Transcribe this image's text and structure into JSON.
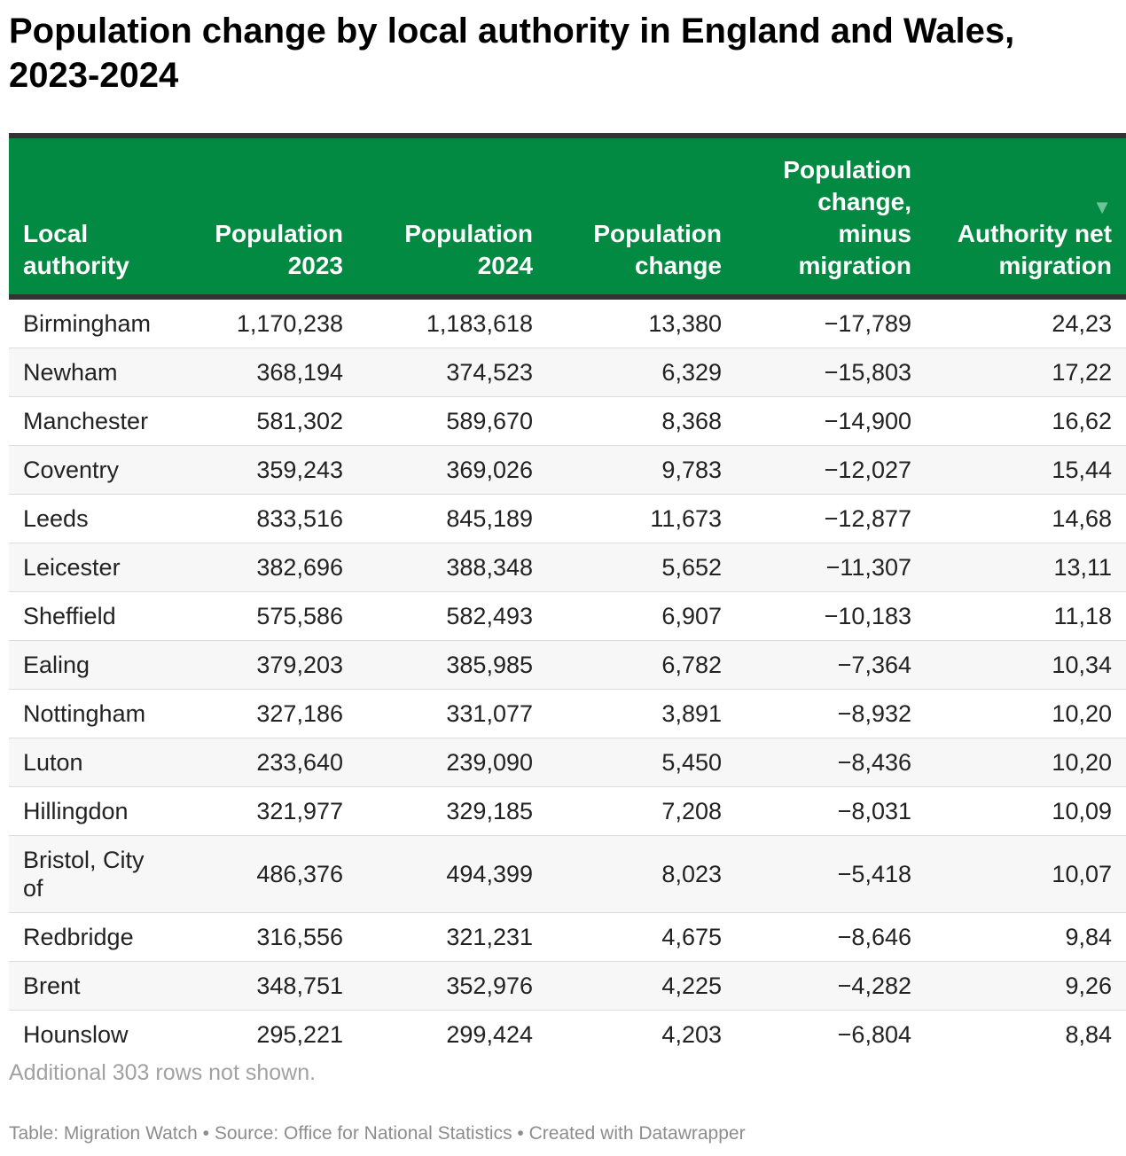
{
  "title": "Population change by local authority in England and Wales, 2023-2024",
  "colors": {
    "header_bg": "#028a42",
    "header_border": "#333333",
    "header_text": "#ffffff"
  },
  "headers": {
    "authority": "Local authority",
    "pop2023": "Population 2023",
    "pop2024": "Population 2024",
    "change": "Population change",
    "minus_migration": "Population change, minus migration",
    "net_migration": "Authority net migration",
    "sort_icon": "sort-desc-icon",
    "sort_glyph": "▼"
  },
  "rows": [
    {
      "authority": "Birmingham",
      "pop2023": "1,170,238",
      "pop2024": "1,183,618",
      "change": "13,380",
      "minus_migration": "−17,789",
      "net_migration": "24,23"
    },
    {
      "authority": "Newham",
      "pop2023": "368,194",
      "pop2024": "374,523",
      "change": "6,329",
      "minus_migration": "−15,803",
      "net_migration": "17,22"
    },
    {
      "authority": "Manchester",
      "pop2023": "581,302",
      "pop2024": "589,670",
      "change": "8,368",
      "minus_migration": "−14,900",
      "net_migration": "16,62"
    },
    {
      "authority": "Coventry",
      "pop2023": "359,243",
      "pop2024": "369,026",
      "change": "9,783",
      "minus_migration": "−12,027",
      "net_migration": "15,44"
    },
    {
      "authority": "Leeds",
      "pop2023": "833,516",
      "pop2024": "845,189",
      "change": "11,673",
      "minus_migration": "−12,877",
      "net_migration": "14,68"
    },
    {
      "authority": "Leicester",
      "pop2023": "382,696",
      "pop2024": "388,348",
      "change": "5,652",
      "minus_migration": "−11,307",
      "net_migration": "13,11"
    },
    {
      "authority": "Sheffield",
      "pop2023": "575,586",
      "pop2024": "582,493",
      "change": "6,907",
      "minus_migration": "−10,183",
      "net_migration": "11,18"
    },
    {
      "authority": "Ealing",
      "pop2023": "379,203",
      "pop2024": "385,985",
      "change": "6,782",
      "minus_migration": "−7,364",
      "net_migration": "10,34"
    },
    {
      "authority": "Nottingham",
      "pop2023": "327,186",
      "pop2024": "331,077",
      "change": "3,891",
      "minus_migration": "−8,932",
      "net_migration": "10,20"
    },
    {
      "authority": "Luton",
      "pop2023": "233,640",
      "pop2024": "239,090",
      "change": "5,450",
      "minus_migration": "−8,436",
      "net_migration": "10,20"
    },
    {
      "authority": "Hillingdon",
      "pop2023": "321,977",
      "pop2024": "329,185",
      "change": "7,208",
      "minus_migration": "−8,031",
      "net_migration": "10,09"
    },
    {
      "authority": "Bristol, City of",
      "pop2023": "486,376",
      "pop2024": "494,399",
      "change": "8,023",
      "minus_migration": "−5,418",
      "net_migration": "10,07"
    },
    {
      "authority": "Redbridge",
      "pop2023": "316,556",
      "pop2024": "321,231",
      "change": "4,675",
      "minus_migration": "−8,646",
      "net_migration": "9,84"
    },
    {
      "authority": "Brent",
      "pop2023": "348,751",
      "pop2024": "352,976",
      "change": "4,225",
      "minus_migration": "−4,282",
      "net_migration": "9,26"
    },
    {
      "authority": "Hounslow",
      "pop2023": "295,221",
      "pop2024": "299,424",
      "change": "4,203",
      "minus_migration": "−6,804",
      "net_migration": "8,84"
    }
  ],
  "note": "Additional 303 rows not shown.",
  "footer": "Table: Migration Watch • Source: Office for National Statistics • Created with Datawrapper"
}
